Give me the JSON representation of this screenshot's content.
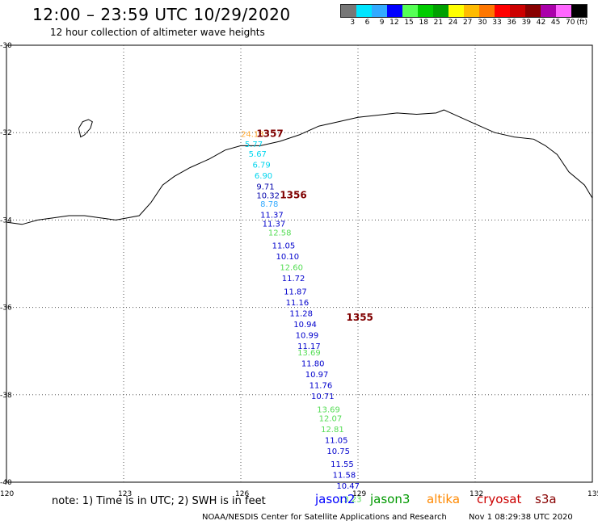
{
  "header": {
    "title": "12:00 – 23:59 UTC 10/29/2020",
    "subtitle": "12 hour collection of altimeter wave heights"
  },
  "legend": {
    "unit": "(ft)",
    "items": [
      {
        "label": "3",
        "color": "#777777"
      },
      {
        "label": "6",
        "color": "#00e5ff"
      },
      {
        "label": "9",
        "color": "#33aaff"
      },
      {
        "label": "12",
        "color": "#0000ff"
      },
      {
        "label": "15",
        "color": "#55ff55"
      },
      {
        "label": "18",
        "color": "#00cc00"
      },
      {
        "label": "21",
        "color": "#00a000"
      },
      {
        "label": "24",
        "color": "#ffff00"
      },
      {
        "label": "27",
        "color": "#ffbb00"
      },
      {
        "label": "30",
        "color": "#ff7700"
      },
      {
        "label": "33",
        "color": "#ff0000"
      },
      {
        "label": "36",
        "color": "#cc0000"
      },
      {
        "label": "39",
        "color": "#880000"
      },
      {
        "label": "42",
        "color": "#aa00aa"
      },
      {
        "label": "45",
        "color": "#ff66ff"
      },
      {
        "label": "70",
        "color": "#000000"
      }
    ]
  },
  "map": {
    "lon_range": [
      120,
      135
    ],
    "lat_range": [
      -40,
      -30
    ],
    "lon_ticks": [
      "120",
      "123",
      "126",
      "129",
      "132",
      "135"
    ],
    "lat_ticks": [
      "-30",
      "-32",
      "-34",
      "-36",
      "-38",
      "-40"
    ],
    "passes": [
      {
        "label": "1357",
        "lat": -32.1,
        "lon": 126.4,
        "color": "#800000"
      },
      {
        "label": "1356",
        "lat": -33.5,
        "lon": 127.0,
        "color": "#800000"
      },
      {
        "label": "1355",
        "lat": -36.3,
        "lon": 128.7,
        "color": "#800000"
      }
    ],
    "observations": [
      {
        "label": "24.18",
        "lat": -32.1,
        "lon": 126.0,
        "color": "#ffaa33"
      },
      {
        "label": "5.77",
        "lat": -32.33,
        "lon": 126.1,
        "color": "#00d5ee"
      },
      {
        "label": "5.67",
        "lat": -32.55,
        "lon": 126.2,
        "color": "#00d5ee"
      },
      {
        "label": "6.79",
        "lat": -32.8,
        "lon": 126.3,
        "color": "#00d5ee"
      },
      {
        "label": "6.90",
        "lat": -33.05,
        "lon": 126.35,
        "color": "#00d5ee"
      },
      {
        "label": "9.71",
        "lat": -33.3,
        "lon": 126.4,
        "color": "#0000aa"
      },
      {
        "label": "10.32",
        "lat": -33.5,
        "lon": 126.4,
        "color": "#0000aa"
      },
      {
        "label": "8.78",
        "lat": -33.7,
        "lon": 126.5,
        "color": "#33aaff"
      },
      {
        "label": "11.37",
        "lat": -33.95,
        "lon": 126.5,
        "color": "#0000cc"
      },
      {
        "label": "11.37",
        "lat": -34.15,
        "lon": 126.55,
        "color": "#0000cc"
      },
      {
        "label": "12.58",
        "lat": -34.35,
        "lon": 126.7,
        "color": "#55dd55"
      },
      {
        "label": "11.05",
        "lat": -34.65,
        "lon": 126.8,
        "color": "#0000cc"
      },
      {
        "label": "10.10",
        "lat": -34.9,
        "lon": 126.9,
        "color": "#0000cc"
      },
      {
        "label": "12.60",
        "lat": -35.15,
        "lon": 127.0,
        "color": "#55dd55"
      },
      {
        "label": "11.72",
        "lat": -35.4,
        "lon": 127.05,
        "color": "#0000cc"
      },
      {
        "label": "11.87",
        "lat": -35.7,
        "lon": 127.1,
        "color": "#0000cc"
      },
      {
        "label": "11.16",
        "lat": -35.95,
        "lon": 127.15,
        "color": "#0000cc"
      },
      {
        "label": "11.28",
        "lat": -36.2,
        "lon": 127.25,
        "color": "#0000cc"
      },
      {
        "label": "10.94",
        "lat": -36.45,
        "lon": 127.35,
        "color": "#0000cc"
      },
      {
        "label": "10.99",
        "lat": -36.7,
        "lon": 127.4,
        "color": "#0000cc"
      },
      {
        "label": "11.17",
        "lat": -36.95,
        "lon": 127.45,
        "color": "#0000cc"
      },
      {
        "label": "13.69",
        "lat": -37.1,
        "lon": 127.45,
        "color": "#55dd55"
      },
      {
        "label": "11.80",
        "lat": -37.35,
        "lon": 127.55,
        "color": "#0000cc"
      },
      {
        "label": "10.97",
        "lat": -37.6,
        "lon": 127.65,
        "color": "#0000cc"
      },
      {
        "label": "11.76",
        "lat": -37.85,
        "lon": 127.75,
        "color": "#0000cc"
      },
      {
        "label": "10.71",
        "lat": -38.1,
        "lon": 127.8,
        "color": "#0000cc"
      },
      {
        "label": "13.69",
        "lat": -38.4,
        "lon": 127.95,
        "color": "#55dd55"
      },
      {
        "label": "12.07",
        "lat": -38.6,
        "lon": 128.0,
        "color": "#55dd55"
      },
      {
        "label": "12.81",
        "lat": -38.85,
        "lon": 128.05,
        "color": "#55dd55"
      },
      {
        "label": "11.05",
        "lat": -39.1,
        "lon": 128.15,
        "color": "#0000cc"
      },
      {
        "label": "10.75",
        "lat": -39.35,
        "lon": 128.2,
        "color": "#0000cc"
      },
      {
        "label": "11.55",
        "lat": -39.65,
        "lon": 128.3,
        "color": "#0000cc"
      },
      {
        "label": "11.58",
        "lat": -39.9,
        "lon": 128.35,
        "color": "#0000cc"
      },
      {
        "label": "10.47",
        "lat": -40.15,
        "lon": 128.45,
        "color": "#0000cc"
      },
      {
        "label": "13.23",
        "lat": -40.45,
        "lon": 128.5,
        "color": "#55dd55"
      }
    ],
    "coastline": [
      [
        120.0,
        -34.05
      ],
      [
        120.4,
        -34.1
      ],
      [
        120.8,
        -34.0
      ],
      [
        121.2,
        -33.95
      ],
      [
        121.6,
        -33.9
      ],
      [
        122.0,
        -33.9
      ],
      [
        122.4,
        -33.95
      ],
      [
        122.8,
        -34.0
      ],
      [
        123.1,
        -33.95
      ],
      [
        123.4,
        -33.9
      ],
      [
        123.7,
        -33.6
      ],
      [
        124.0,
        -33.2
      ],
      [
        124.3,
        -33.0
      ],
      [
        124.7,
        -32.8
      ],
      [
        125.2,
        -32.6
      ],
      [
        125.6,
        -32.4
      ],
      [
        126.0,
        -32.3
      ],
      [
        126.5,
        -32.3
      ],
      [
        127.0,
        -32.2
      ],
      [
        127.5,
        -32.05
      ],
      [
        128.0,
        -31.85
      ],
      [
        128.5,
        -31.75
      ],
      [
        129.0,
        -31.65
      ],
      [
        129.5,
        -31.6
      ],
      [
        130.0,
        -31.55
      ],
      [
        130.5,
        -31.58
      ],
      [
        131.0,
        -31.55
      ],
      [
        131.2,
        -31.48
      ],
      [
        131.5,
        -31.6
      ],
      [
        132.0,
        -31.8
      ],
      [
        132.5,
        -32.0
      ],
      [
        133.0,
        -32.1
      ],
      [
        133.5,
        -32.15
      ],
      [
        133.8,
        -32.3
      ],
      [
        134.1,
        -32.5
      ],
      [
        134.4,
        -32.9
      ],
      [
        134.8,
        -33.2
      ],
      [
        135.0,
        -33.5
      ]
    ],
    "island": [
      [
        121.85,
        -31.9
      ],
      [
        121.95,
        -31.75
      ],
      [
        122.1,
        -31.7
      ],
      [
        122.2,
        -31.75
      ],
      [
        122.15,
        -31.9
      ],
      [
        122.0,
        -32.05
      ],
      [
        121.9,
        -32.1
      ],
      [
        121.85,
        -31.9
      ]
    ],
    "note": "note:  1) Time is in UTC; 2) SWH is in feet",
    "missions": [
      {
        "label": "jason2",
        "color": "#0000ff"
      },
      {
        "label": "jason3",
        "color": "#009900"
      },
      {
        "label": "altika",
        "color": "#ff8800"
      },
      {
        "label": "cryosat",
        "color": "#cc0000"
      },
      {
        "label": "s3a",
        "color": "#880000"
      }
    ]
  },
  "footer": {
    "credit": "NOAA/NESDIS Center for Satellite Applications and Research",
    "timestamp": "Nov  1 08:29:38 UTC 2020"
  }
}
